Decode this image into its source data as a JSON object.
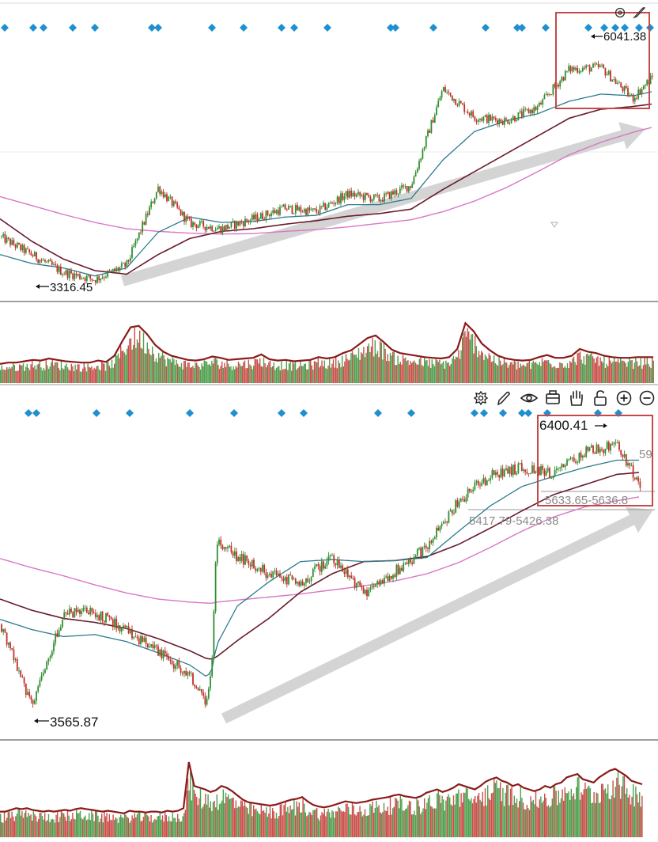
{
  "colors": {
    "up": "#2f8f2f",
    "down": "#c0302a",
    "ma_short": "#2b7a8c",
    "ma_mid": "#6b1a2a",
    "ma_long": "#d977c4",
    "signal": "#1e8fd0",
    "highlight_box": "#c4494b",
    "arrow": "#d4d4d4",
    "volume_line": "#8b1a1a"
  },
  "toolbar": {
    "icons": [
      "settings-icon",
      "pen-icon",
      "eye-icon",
      "toolbox-icon",
      "hand-icon",
      "lock-icon",
      "zoom-in-icon",
      "zoom-out-icon"
    ]
  },
  "chart_data": [
    {
      "type": "line",
      "panel": "top-price",
      "trend": "up",
      "low_label": "3316.45",
      "high_label": "6041.38",
      "x": [
        0,
        40,
        80,
        120,
        160,
        200,
        240,
        280,
        320,
        360,
        400,
        440,
        480,
        520,
        560,
        600,
        640,
        680,
        720,
        760,
        800,
        826
      ],
      "close": [
        3900,
        3700,
        3500,
        3420,
        3580,
        4450,
        4050,
        3990,
        4100,
        4220,
        4180,
        4380,
        4320,
        4480,
        5560,
        5240,
        5200,
        5350,
        5780,
        5800,
        5450,
        5700
      ],
      "ma_short": [
        3700,
        3600,
        3550,
        3460,
        3550,
        3950,
        4120,
        4060,
        4070,
        4120,
        4140,
        4260,
        4260,
        4330,
        4760,
        5080,
        5200,
        5280,
        5420,
        5500,
        5480,
        5530
      ],
      "ma_mid": [
        4100,
        3850,
        3650,
        3520,
        3480,
        3700,
        3880,
        3960,
        3990,
        4040,
        4080,
        4130,
        4160,
        4210,
        4430,
        4630,
        4830,
        5030,
        5230,
        5330,
        5360,
        5390
      ],
      "ma_long": [
        4350,
        4250,
        4150,
        4060,
        3990,
        3960,
        3940,
        3930,
        3935,
        3960,
        3980,
        4010,
        4050,
        4090,
        4180,
        4300,
        4450,
        4630,
        4820,
        4960,
        5070,
        5130
      ],
      "signal_x": [
        6,
        42,
        55,
        92,
        120,
        192,
        200,
        268,
        308,
        356,
        372,
        414,
        494,
        500,
        548,
        614,
        654,
        660,
        690,
        744,
        764,
        778,
        790,
        808,
        822
      ],
      "ylim": [
        3200,
        6200
      ]
    },
    {
      "type": "bar",
      "panel": "top-volume",
      "values": [
        28,
        30,
        30,
        32,
        34,
        33,
        36,
        34,
        32,
        31,
        30,
        30,
        33,
        31,
        40,
        62,
        82,
        84,
        72,
        56,
        46,
        40,
        37,
        34,
        33,
        35,
        39,
        37,
        34,
        35,
        36,
        37,
        42,
        35,
        33,
        34,
        32,
        33,
        34,
        38,
        36,
        38,
        44,
        48,
        57,
        66,
        70,
        60,
        49,
        44,
        42,
        40,
        38,
        37,
        36,
        38,
        50,
        88,
        76,
        58,
        48,
        40,
        36,
        34,
        33,
        34,
        38,
        41,
        37,
        37,
        40,
        50,
        46,
        44,
        40,
        38,
        37,
        37,
        38,
        38,
        38
      ],
      "ylim": [
        0,
        100
      ]
    },
    {
      "type": "line",
      "panel": "bottom-price",
      "trend": "up",
      "low_label": "3565.87",
      "high_label": "6400.41",
      "range_label_1": "5633.65-5636.8",
      "range_label_2": "5417.79-5426.38",
      "right_label": "59",
      "x": [
        0,
        40,
        80,
        120,
        160,
        200,
        240,
        262,
        268,
        274,
        300,
        340,
        380,
        420,
        460,
        500,
        540,
        580,
        620,
        660,
        700,
        740,
        780,
        810
      ],
      "close": [
        4500,
        3700,
        4600,
        4620,
        4440,
        4220,
        4010,
        3720,
        4180,
        5340,
        5170,
        5000,
        4900,
        5180,
        4800,
        5030,
        5260,
        5720,
        5970,
        6050,
        5980,
        6200,
        6270,
        5870
      ],
      "ma_short": [
        4550,
        4450,
        4380,
        4400,
        4330,
        4220,
        4100,
        3980,
        4060,
        4300,
        4680,
        4920,
        5120,
        5140,
        5120,
        5130,
        5160,
        5420,
        5670,
        5860,
        5960,
        6050,
        6120,
        6120
      ],
      "ma_mid": [
        4750,
        4640,
        4560,
        4520,
        4460,
        4360,
        4240,
        4160,
        4160,
        4180,
        4340,
        4560,
        4820,
        5000,
        5120,
        5130,
        5170,
        5290,
        5450,
        5620,
        5780,
        5880,
        5980,
        6000
      ],
      "ma_long": [
        5150,
        5060,
        4980,
        4890,
        4810,
        4750,
        4720,
        4710,
        4710,
        4720,
        4740,
        4770,
        4800,
        4840,
        4880,
        4930,
        5000,
        5110,
        5260,
        5420,
        5560,
        5660,
        5720,
        5760
      ],
      "signal_x": [
        36,
        46,
        122,
        164,
        240,
        296,
        356,
        384,
        478,
        520,
        600,
        612,
        636,
        660,
        668,
        692,
        756,
        782
      ],
      "ylim": [
        3400,
        6600
      ]
    },
    {
      "type": "bar",
      "panel": "bottom-volume",
      "values": [
        30,
        30,
        32,
        34,
        33,
        34,
        32,
        31,
        30,
        31,
        30,
        31,
        32,
        31,
        33,
        34,
        33,
        32,
        31,
        30,
        31,
        30,
        29,
        28,
        31,
        30,
        30,
        29,
        30,
        30,
        29,
        31,
        30,
        31,
        34,
        88,
        60,
        58,
        56,
        53,
        55,
        60,
        58,
        54,
        49,
        44,
        41,
        40,
        39,
        38,
        37,
        38,
        40,
        42,
        44,
        45,
        47,
        42,
        38,
        36,
        35,
        36,
        38,
        40,
        42,
        41,
        40,
        41,
        42,
        44,
        45,
        46,
        47,
        49,
        50,
        48,
        47,
        46,
        48,
        52,
        54,
        56,
        53,
        55,
        58,
        62,
        60,
        58,
        56,
        60,
        65,
        68,
        70,
        66,
        64,
        60,
        62,
        58,
        56,
        54,
        56,
        60,
        58,
        62,
        64,
        70,
        72,
        74,
        68,
        66,
        64,
        70,
        74,
        78,
        80,
        76,
        72,
        66,
        64,
        62
      ],
      "ylim": [
        0,
        100
      ]
    }
  ]
}
